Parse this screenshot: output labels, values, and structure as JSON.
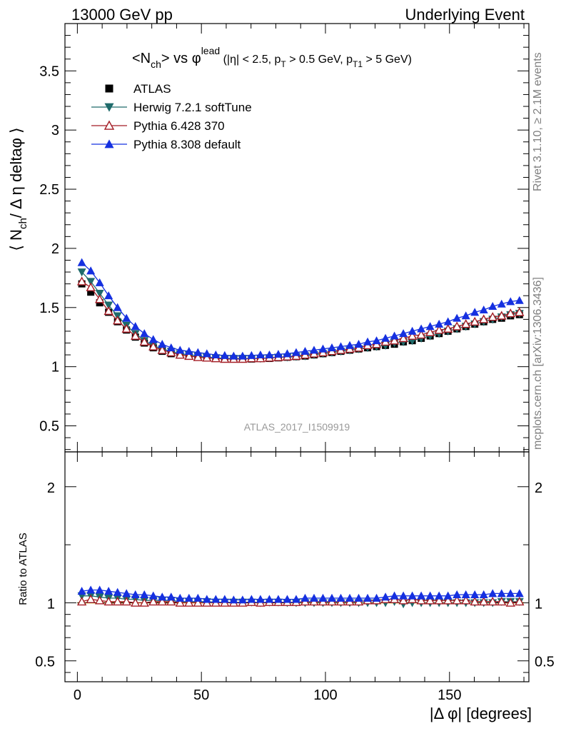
{
  "header": {
    "left": "13000 GeV pp",
    "right": "Underlying Event"
  },
  "side_labels": {
    "top": "Rivet 3.1.10, ≥ 2.1M events",
    "bottom": "mcplots.cern.ch [arXiv:1306.3436]"
  },
  "watermark": "ATLAS_2017_I1509919",
  "chart_data": [
    {
      "type": "scatter",
      "panel": "main",
      "title_parts": {
        "lhs": "<N",
        "lhs_sub": "ch",
        "mid": "> vs φ",
        "mid_sup": "lead",
        "cut1": " (|η| < 2.5, p",
        "cut1_sub": "T",
        "cut2": " > 0.5 GeV, p",
        "cut2_sub": "T1",
        "cut3": " > 5 GeV)"
      },
      "ylabel_parts": {
        "a": "⟨ N",
        "a_sub": "ch",
        "b": "/ Δ η deltaφ ⟩"
      },
      "ylim": [
        0.28,
        3.9
      ],
      "yticks": [
        0.5,
        1,
        1.5,
        2,
        2.5,
        3,
        3.5
      ],
      "ytick_labels": [
        "0.5",
        "1",
        "1.5",
        "2",
        "2.5",
        "3",
        "3.5"
      ],
      "legend_position": "top-left",
      "x": [
        1.8,
        5.4,
        9.0,
        12.6,
        16.2,
        19.8,
        23.4,
        27.0,
        30.6,
        34.2,
        37.8,
        41.4,
        45.0,
        48.6,
        52.2,
        55.8,
        59.4,
        63.0,
        66.6,
        70.2,
        73.8,
        77.4,
        81.0,
        84.6,
        88.2,
        91.8,
        95.4,
        99.0,
        102.6,
        106.2,
        109.8,
        113.4,
        117.0,
        120.6,
        124.2,
        127.8,
        131.4,
        135.0,
        138.6,
        142.2,
        145.8,
        149.4,
        153.0,
        156.6,
        160.2,
        163.8,
        167.4,
        171.0,
        174.6,
        178.2
      ],
      "series": [
        {
          "name": "ATLAS",
          "marker": "square",
          "color": "#000000",
          "values": [
            1.7,
            1.63,
            1.54,
            1.46,
            1.38,
            1.31,
            1.25,
            1.2,
            1.16,
            1.13,
            1.11,
            1.1,
            1.09,
            1.08,
            1.075,
            1.07,
            1.065,
            1.065,
            1.065,
            1.065,
            1.07,
            1.07,
            1.075,
            1.08,
            1.085,
            1.09,
            1.1,
            1.11,
            1.12,
            1.13,
            1.14,
            1.15,
            1.16,
            1.17,
            1.18,
            1.19,
            1.21,
            1.22,
            1.24,
            1.26,
            1.28,
            1.3,
            1.32,
            1.34,
            1.36,
            1.38,
            1.4,
            1.41,
            1.43,
            1.44
          ]
        },
        {
          "name": "Herwig 7.2.1 softTune",
          "marker": "triangle-down",
          "color": "#1f6b6b",
          "values": [
            1.8,
            1.72,
            1.62,
            1.52,
            1.43,
            1.35,
            1.28,
            1.22,
            1.18,
            1.15,
            1.13,
            1.11,
            1.1,
            1.09,
            1.08,
            1.075,
            1.07,
            1.07,
            1.07,
            1.07,
            1.07,
            1.075,
            1.08,
            1.08,
            1.085,
            1.09,
            1.1,
            1.11,
            1.12,
            1.13,
            1.14,
            1.15,
            1.16,
            1.17,
            1.18,
            1.2,
            1.21,
            1.22,
            1.24,
            1.26,
            1.28,
            1.3,
            1.32,
            1.34,
            1.36,
            1.38,
            1.4,
            1.42,
            1.44,
            1.45
          ]
        },
        {
          "name": "Pythia 6.428 370",
          "marker": "triangle-up-open",
          "color": "#a31c24",
          "values": [
            1.72,
            1.67,
            1.57,
            1.47,
            1.39,
            1.32,
            1.26,
            1.21,
            1.17,
            1.14,
            1.12,
            1.1,
            1.09,
            1.08,
            1.075,
            1.07,
            1.065,
            1.065,
            1.065,
            1.07,
            1.07,
            1.075,
            1.08,
            1.085,
            1.09,
            1.1,
            1.11,
            1.12,
            1.13,
            1.14,
            1.15,
            1.16,
            1.18,
            1.19,
            1.21,
            1.22,
            1.24,
            1.26,
            1.27,
            1.29,
            1.31,
            1.32,
            1.34,
            1.36,
            1.38,
            1.4,
            1.42,
            1.43,
            1.45,
            1.46
          ]
        },
        {
          "name": "Pythia 8.308 default",
          "marker": "triangle-up",
          "color": "#1530e0",
          "values": [
            1.88,
            1.81,
            1.71,
            1.6,
            1.5,
            1.41,
            1.34,
            1.28,
            1.23,
            1.19,
            1.16,
            1.14,
            1.13,
            1.12,
            1.11,
            1.1,
            1.095,
            1.09,
            1.09,
            1.095,
            1.1,
            1.1,
            1.105,
            1.11,
            1.12,
            1.13,
            1.14,
            1.15,
            1.16,
            1.17,
            1.18,
            1.19,
            1.21,
            1.22,
            1.24,
            1.26,
            1.28,
            1.3,
            1.32,
            1.34,
            1.36,
            1.38,
            1.41,
            1.43,
            1.46,
            1.48,
            1.51,
            1.53,
            1.55,
            1.56
          ]
        }
      ]
    },
    {
      "type": "scatter",
      "panel": "ratio",
      "ylabel": "Ratio to ATLAS",
      "ylim": [
        0.32,
        2.3
      ],
      "yticks": [
        0.5,
        1,
        2
      ],
      "ytick_labels": [
        "0.5",
        "1",
        "2"
      ],
      "xlabel": "|Δ φ| [degrees]",
      "xlim": [
        -5,
        182
      ],
      "xticks": [
        0,
        50,
        100,
        150
      ],
      "xtick_labels": [
        "0",
        "50",
        "100",
        "150"
      ],
      "reference_band_color": "#ffff66",
      "x": [
        1.8,
        5.4,
        9.0,
        12.6,
        16.2,
        19.8,
        23.4,
        27.0,
        30.6,
        34.2,
        37.8,
        41.4,
        45.0,
        48.6,
        52.2,
        55.8,
        59.4,
        63.0,
        66.6,
        70.2,
        73.8,
        77.4,
        81.0,
        84.6,
        88.2,
        91.8,
        95.4,
        99.0,
        102.6,
        106.2,
        109.8,
        113.4,
        117.0,
        120.6,
        124.2,
        127.8,
        131.4,
        135.0,
        138.6,
        142.2,
        145.8,
        149.4,
        153.0,
        156.6,
        160.2,
        163.8,
        167.4,
        171.0,
        174.6,
        178.2
      ],
      "series": [
        {
          "name": "Herwig 7.2.1 softTune",
          "marker": "triangle-down",
          "color": "#1f6b6b",
          "values": [
            1.06,
            1.06,
            1.05,
            1.04,
            1.04,
            1.03,
            1.03,
            1.02,
            1.02,
            1.02,
            1.02,
            1.01,
            1.01,
            1.01,
            1.01,
            1.005,
            1.005,
            1.005,
            1.005,
            1.005,
            1.0,
            1.005,
            1.005,
            1.0,
            1.0,
            1.0,
            1.0,
            1.0,
            1.0,
            1.0,
            1.0,
            1.0,
            1.0,
            1.0,
            1.0,
            1.01,
            0.99,
            1.0,
            1.0,
            1.0,
            1.0,
            1.0,
            1.0,
            1.0,
            1.0,
            1.0,
            1.0,
            1.01,
            1.01,
            1.01
          ]
        },
        {
          "name": "Pythia 6.428 370",
          "marker": "triangle-up-open",
          "color": "#a31c24",
          "values": [
            1.01,
            1.03,
            1.02,
            1.01,
            1.01,
            1.01,
            1.0,
            1.0,
            1.01,
            1.01,
            1.01,
            1.0,
            1.0,
            1.0,
            1.0,
            1.0,
            1.0,
            1.0,
            1.0,
            1.005,
            1.0,
            1.005,
            1.005,
            1.005,
            1.005,
            1.01,
            1.01,
            1.01,
            1.01,
            1.01,
            1.01,
            1.01,
            1.02,
            1.02,
            1.03,
            1.03,
            1.02,
            1.03,
            1.02,
            1.02,
            1.02,
            1.02,
            1.02,
            1.02,
            1.01,
            1.01,
            1.01,
            1.01,
            1.0,
            1.01
          ]
        },
        {
          "name": "Pythia 8.308 default",
          "marker": "triangle-up",
          "color": "#1530e0",
          "values": [
            1.1,
            1.11,
            1.11,
            1.1,
            1.09,
            1.08,
            1.07,
            1.07,
            1.06,
            1.05,
            1.05,
            1.04,
            1.04,
            1.04,
            1.03,
            1.03,
            1.03,
            1.025,
            1.025,
            1.03,
            1.03,
            1.03,
            1.03,
            1.03,
            1.03,
            1.04,
            1.04,
            1.04,
            1.04,
            1.04,
            1.04,
            1.04,
            1.04,
            1.04,
            1.05,
            1.06,
            1.06,
            1.06,
            1.06,
            1.06,
            1.06,
            1.06,
            1.07,
            1.07,
            1.07,
            1.07,
            1.08,
            1.08,
            1.08,
            1.08
          ]
        }
      ]
    }
  ]
}
